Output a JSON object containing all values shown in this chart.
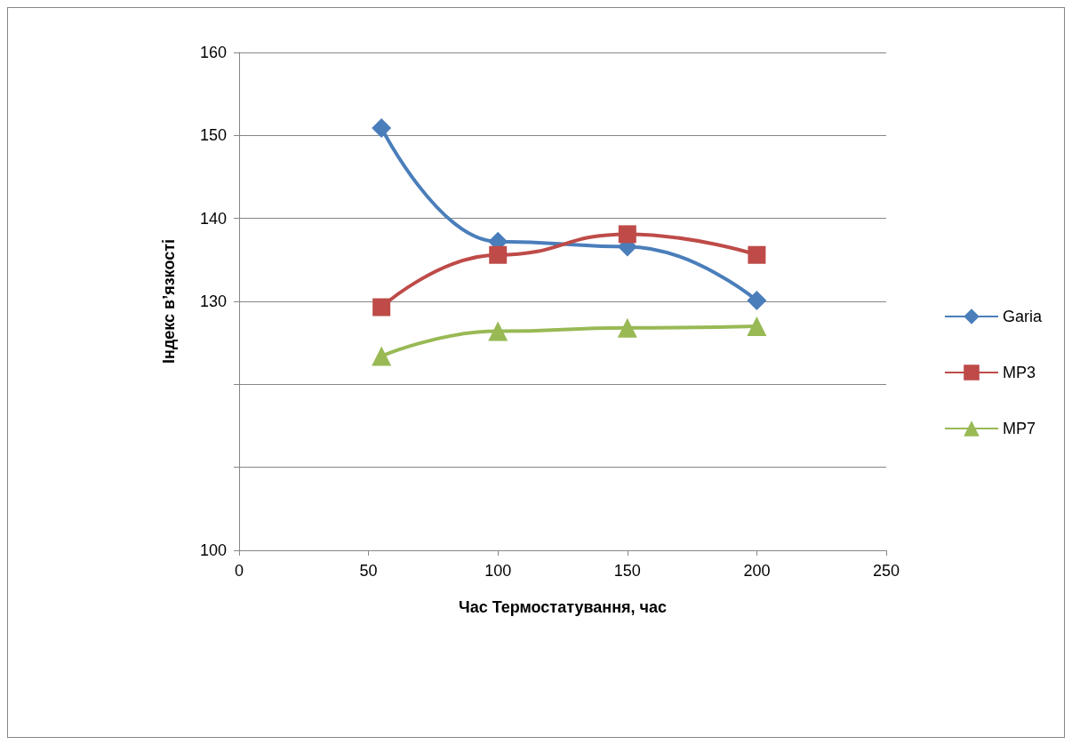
{
  "chart_data": {
    "type": "line",
    "xlabel": "Час Термостатування, час",
    "ylabel": "Індекс в’язкості",
    "x": [
      55,
      100,
      150,
      200
    ],
    "series": [
      {
        "name": "Garia",
        "color": "#4a7ebb",
        "marker": "diamond",
        "values": [
          150.9,
          137.2,
          136.6,
          130.1
        ]
      },
      {
        "name": "MP3",
        "color": "#be4b48",
        "marker": "square",
        "values": [
          129.3,
          135.6,
          138.1,
          135.6
        ]
      },
      {
        "name": "MP7",
        "color": "#98b954",
        "marker": "triangle",
        "values": [
          123.4,
          126.4,
          126.8,
          127.0
        ]
      }
    ],
    "xlim": [
      0,
      250
    ],
    "xticks": [
      0,
      50,
      100,
      150,
      200,
      250
    ],
    "ylim": [
      100,
      160
    ],
    "yticks": [
      100,
      {
        "value": 110,
        "label": null
      },
      {
        "value": 120,
        "label": null
      },
      130,
      140,
      150,
      160
    ],
    "grid": "y",
    "legend": "right",
    "line_style": "solid"
  }
}
